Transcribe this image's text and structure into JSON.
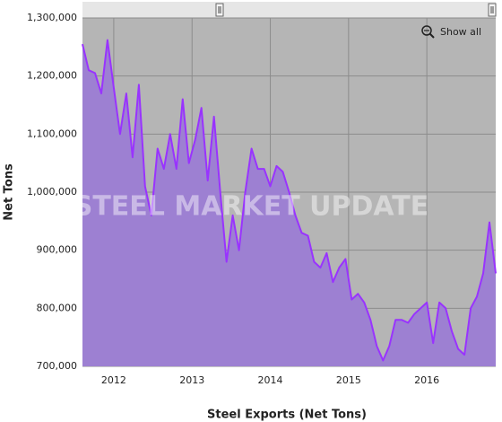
{
  "chart_data": {
    "type": "area",
    "xlabel": "Steel Exports (Net Tons)",
    "ylabel": "Net Tons",
    "watermark": "STEEL MARKET UPDATE",
    "button": "Show all",
    "x": [
      2011.6,
      2011.68,
      2011.76,
      2011.84,
      2011.92,
      2012,
      2012.08,
      2012.16,
      2012.24,
      2012.32,
      2012.4,
      2012.48,
      2012.56,
      2012.64,
      2012.72,
      2012.8,
      2012.88,
      2012.96,
      2013.04,
      2013.12,
      2013.2,
      2013.28,
      2013.36,
      2013.44,
      2013.52,
      2013.6,
      2013.68,
      2013.76,
      2013.84,
      2013.92,
      2014,
      2014.08,
      2014.16,
      2014.24,
      2014.32,
      2014.4,
      2014.48,
      2014.56,
      2014.64,
      2014.72,
      2014.8,
      2014.88,
      2014.96,
      2015.04,
      2015.12,
      2015.2,
      2015.28,
      2015.36,
      2015.44,
      2015.52,
      2015.6,
      2015.68,
      2015.76,
      2015.84,
      2015.92,
      2016,
      2016.08,
      2016.16,
      2016.24,
      2016.32,
      2016.4,
      2016.48,
      2016.56,
      2016.64,
      2016.72,
      2016.8,
      2016.88
    ],
    "series": [
      {
        "name": "Steel Exports",
        "color": "#9933ff",
        "fill": "#9d80d2",
        "values": [
          1255000,
          1210000,
          1205000,
          1170000,
          1262000,
          1180000,
          1100000,
          1170000,
          1060000,
          1185000,
          1010000,
          960000,
          1075000,
          1040000,
          1100000,
          1040000,
          1160000,
          1050000,
          1090000,
          1145000,
          1020000,
          1130000,
          1000000,
          880000,
          960000,
          900000,
          1000000,
          1075000,
          1040000,
          1040000,
          1010000,
          1045000,
          1035000,
          1000000,
          960000,
          930000,
          925000,
          880000,
          870000,
          895000,
          845000,
          870000,
          885000,
          815000,
          825000,
          810000,
          780000,
          735000,
          710000,
          735000,
          780000,
          780000,
          775000,
          790000,
          800000,
          810000,
          740000,
          810000,
          800000,
          760000,
          730000,
          720000,
          800000,
          820000,
          860000,
          948000,
          860000
        ]
      }
    ],
    "xlim": [
      2011.6,
      2016.88
    ],
    "xticks": [
      2012,
      2013,
      2014,
      2015,
      2016
    ],
    "ylim": [
      700000,
      1300000
    ],
    "yticks": [
      {
        "value": 700000,
        "label": "700,000"
      },
      {
        "value": 800000,
        "label": "800,000"
      },
      {
        "value": 900000,
        "label": "900,000"
      },
      {
        "value": 1000000,
        "label": "1,000,000"
      },
      {
        "value": 1100000,
        "label": "1,100,000"
      },
      {
        "value": 1200000,
        "label": "1,200,000"
      },
      {
        "value": 1300000,
        "label": "1,300,000"
      }
    ],
    "grid": true
  }
}
